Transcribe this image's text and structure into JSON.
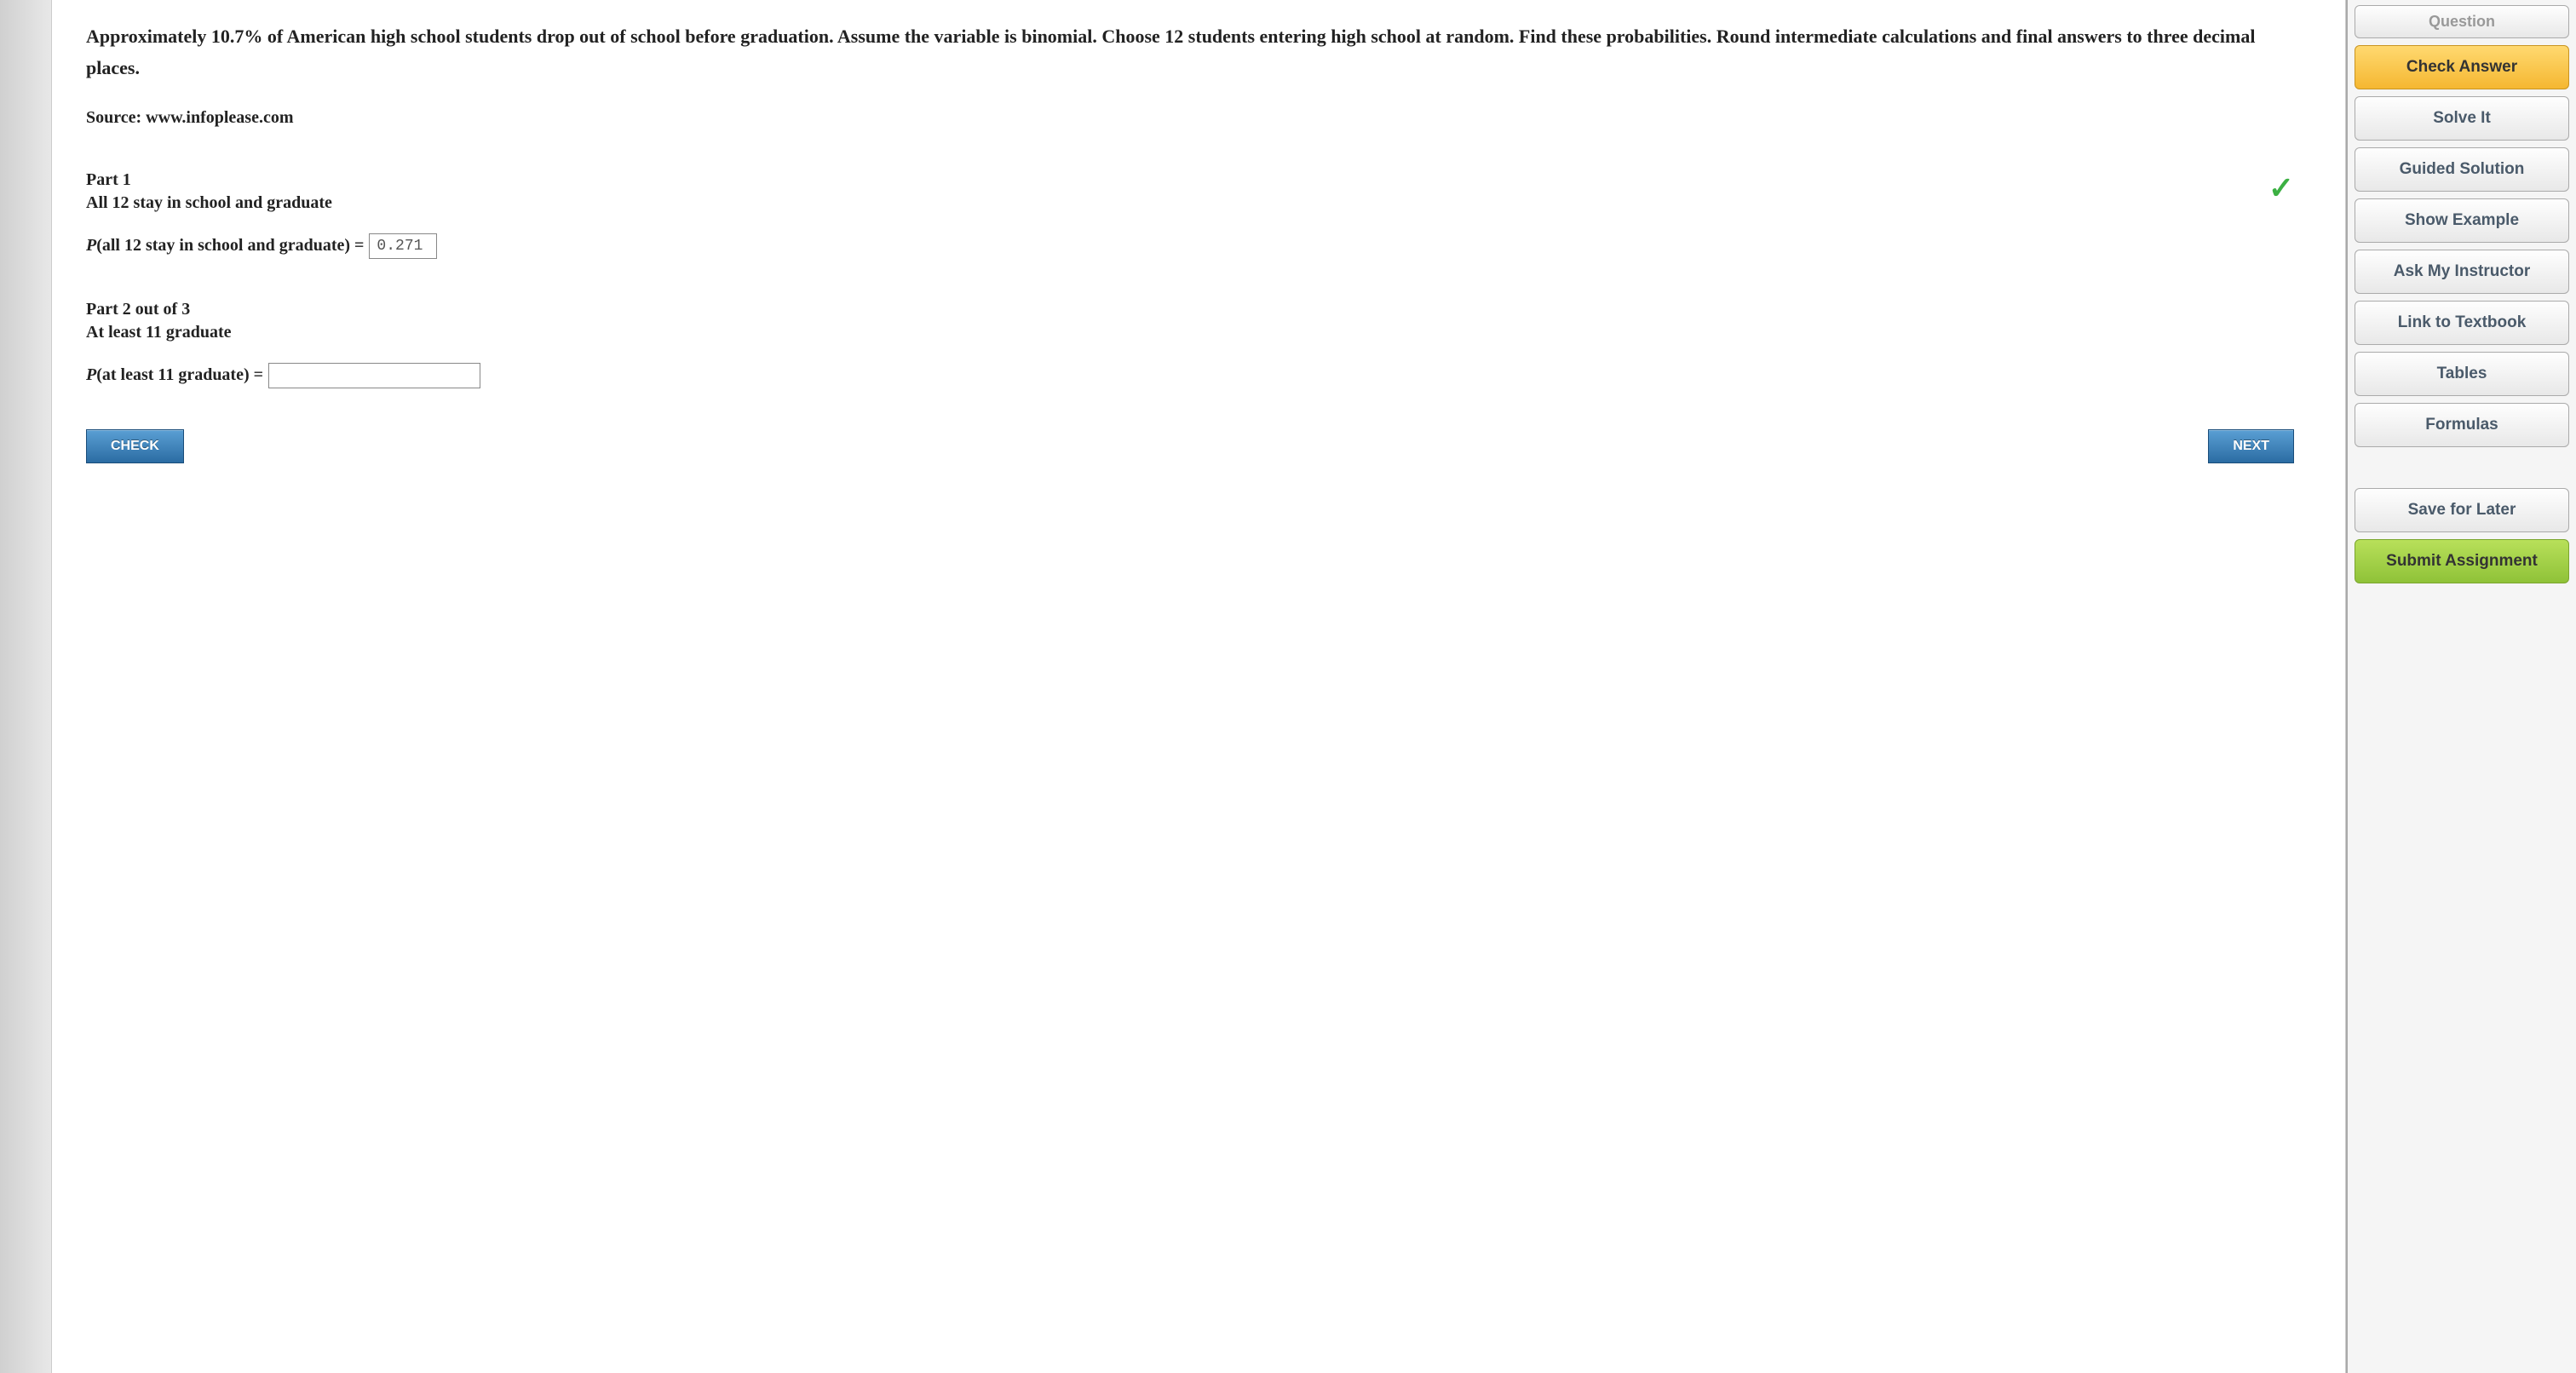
{
  "question": {
    "text": "Approximately 10.7% of American high school students drop out of school before graduation. Assume the variable is binomial. Choose 12 students entering high school at random. Find these probabilities. Round intermediate calculations and final answers to three decimal places.",
    "source": "Source: www.infoplease.com"
  },
  "parts": {
    "part1": {
      "header": "Part 1",
      "label": "All 12 stay in school and graduate",
      "formula_prefix": "P",
      "formula_body": "(all 12 stay in school and graduate) =",
      "answer": "0.271",
      "correct": true
    },
    "part2": {
      "header": "Part 2 out of 3",
      "label": "At least 11 graduate",
      "formula_prefix": "P",
      "formula_body": "(at least 11 graduate) =",
      "answer": ""
    }
  },
  "buttons": {
    "check": "CHECK",
    "next": "NEXT"
  },
  "sidebar": {
    "question": "Question",
    "check_answer": "Check Answer",
    "solve_it": "Solve It",
    "guided_solution": "Guided Solution",
    "show_example": "Show Example",
    "ask_instructor": "Ask My Instructor",
    "link_textbook": "Link to Textbook",
    "tables": "Tables",
    "formulas": "Formulas",
    "save_later": "Save for Later",
    "submit": "Submit Assignment"
  },
  "colors": {
    "check_answer_bg": "#f5b731",
    "submit_bg": "#8fc238",
    "action_btn_bg": "#2b6ca3",
    "correct_check": "#3cb043"
  }
}
